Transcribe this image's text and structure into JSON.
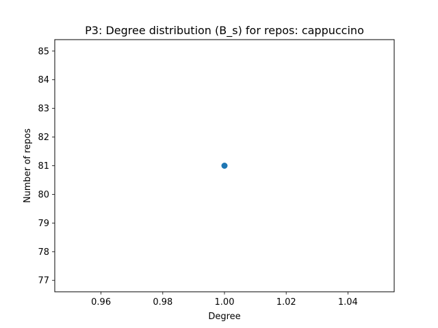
{
  "chart_data": {
    "type": "scatter",
    "title": "P3: Degree distribution (B_s) for repos: cappuccino",
    "xlabel": "Degree",
    "ylabel": "Number of repos",
    "xlim": [
      0.945,
      1.055
    ],
    "ylim": [
      76.6,
      85.4
    ],
    "xticks": [
      0.96,
      0.98,
      1.0,
      1.02,
      1.04
    ],
    "xtick_labels": [
      "0.96",
      "0.98",
      "1.00",
      "1.02",
      "1.04"
    ],
    "yticks": [
      77,
      78,
      79,
      80,
      81,
      82,
      83,
      84,
      85
    ],
    "ytick_labels": [
      "77",
      "78",
      "79",
      "80",
      "81",
      "82",
      "83",
      "84",
      "85"
    ],
    "series": [
      {
        "x": [
          1.0
        ],
        "y": [
          81
        ],
        "color": "#1f77b4"
      }
    ],
    "grid": false,
    "legend": "none"
  }
}
